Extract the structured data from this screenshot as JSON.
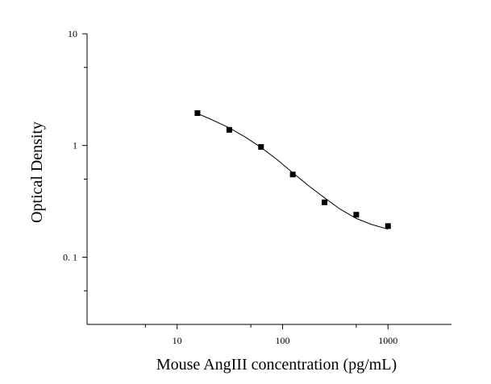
{
  "chart_data": {
    "type": "scatter",
    "title": "",
    "xlabel": "Mouse AngIII concentration (pg/mL)",
    "ylabel": "Optical Density",
    "x_scale": "log",
    "y_scale": "log",
    "xlim": [
      1.4,
      4000
    ],
    "ylim": [
      0.025,
      10
    ],
    "x_ticks": [
      {
        "value": 10,
        "label": "10"
      },
      {
        "value": 100,
        "label": "100"
      },
      {
        "value": 1000,
        "label": "1000"
      }
    ],
    "y_ticks": [
      {
        "value": 0.1,
        "label": "0. 1"
      },
      {
        "value": 1,
        "label": "1"
      },
      {
        "value": 10,
        "label": "10"
      }
    ],
    "grid": false,
    "legend": "none",
    "series": [
      {
        "points": [
          {
            "x": 15.6,
            "y": 1.95
          },
          {
            "x": 31.25,
            "y": 1.38
          },
          {
            "x": 62.5,
            "y": 0.97
          },
          {
            "x": 125,
            "y": 0.55
          },
          {
            "x": 250,
            "y": 0.31
          },
          {
            "x": 500,
            "y": 0.24
          },
          {
            "x": 1000,
            "y": 0.19
          }
        ],
        "fit_curve": [
          {
            "x": 15.6,
            "y": 1.93
          },
          {
            "x": 20,
            "y": 1.75
          },
          {
            "x": 31.25,
            "y": 1.44
          },
          {
            "x": 45,
            "y": 1.18
          },
          {
            "x": 62.5,
            "y": 0.96
          },
          {
            "x": 90,
            "y": 0.74
          },
          {
            "x": 125,
            "y": 0.57
          },
          {
            "x": 180,
            "y": 0.43
          },
          {
            "x": 250,
            "y": 0.34
          },
          {
            "x": 350,
            "y": 0.27
          },
          {
            "x": 500,
            "y": 0.222
          },
          {
            "x": 700,
            "y": 0.196
          },
          {
            "x": 1000,
            "y": 0.178
          }
        ]
      }
    ],
    "colors": {
      "marker": "#000000",
      "line": "#000000",
      "axis": "#000000"
    }
  }
}
